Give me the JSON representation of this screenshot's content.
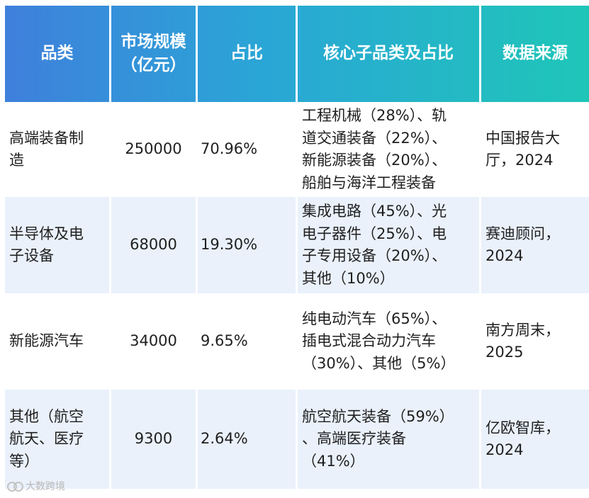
{
  "header": {
    "category": "品类",
    "market_size": "市场规模\n（亿元）",
    "share": "占比",
    "subcategories": "核心子品类及占比",
    "source": "数据来源"
  },
  "rows": [
    {
      "category": "高端装备制\n造",
      "market_size": "250000",
      "share": "70.96%",
      "subcategories": "工程机械（28%）、轨\n道交通装备（22%）、\n新能源装备（20%）、\n船舶与海洋工程装备",
      "source": "中国报告大\n厅，2024"
    },
    {
      "category": "半导体及电\n子设备",
      "market_size": "68000",
      "share": "19.30%",
      "subcategories": "集成电路（45%）、光\n电子器件（25%）、电\n子专用设备（20%）、\n其他（10%）",
      "source": "赛迪顾问，\n2024"
    },
    {
      "category": "新能源汽车",
      "market_size": "34000",
      "share": "9.65%",
      "subcategories": "纯电动汽车（65%）、\n插电式混合动力汽车\n（30%）、其他（5%）",
      "source": "南方周末，\n2025"
    },
    {
      "category": "其他（航空\n航天、医疗\n等）",
      "market_size": "9300",
      "share": "2.64%",
      "subcategories": "航空航天装备（59%）\n、高端医疗装备\n（41%）",
      "source": "亿欧智库，\n2024"
    }
  ],
  "watermark": "大数跨境"
}
